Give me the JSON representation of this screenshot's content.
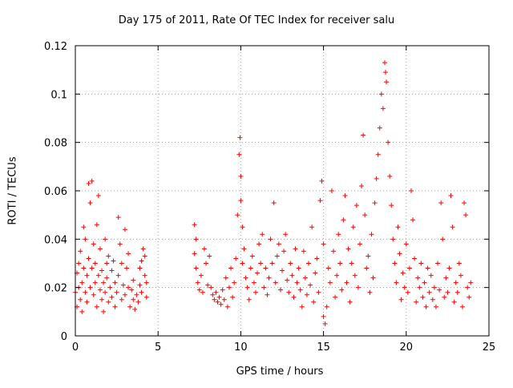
{
  "chart_data": {
    "type": "scatter",
    "title": "Day 175 of 2011, Rate Of TEC Index for receiver salu",
    "xlabel": "GPS time / hours",
    "ylabel": "ROTI / TECUs",
    "xlim": [
      0,
      25
    ],
    "ylim": [
      0,
      0.12
    ],
    "x_ticks": [
      "0",
      "5",
      "10",
      "15",
      "20",
      "25"
    ],
    "y_ticks": [
      "0",
      "0.02",
      "0.04",
      "0.06",
      "0.08",
      "0.1",
      "0.12"
    ],
    "grid": true,
    "marker": "+",
    "color": "#ff0000",
    "series": [
      {
        "points": [
          [
            0.0,
            0.018
          ],
          [
            0.1,
            0.026
          ],
          [
            0.1,
            0.012
          ],
          [
            0.2,
            0.03
          ],
          [
            0.2,
            0.02
          ],
          [
            0.3,
            0.015
          ],
          [
            0.3,
            0.035
          ],
          [
            0.4,
            0.022
          ],
          [
            0.4,
            0.01
          ],
          [
            0.5,
            0.045
          ],
          [
            0.5,
            0.028
          ],
          [
            0.6,
            0.018
          ],
          [
            0.6,
            0.04
          ],
          [
            0.7,
            0.025
          ],
          [
            0.7,
            0.014
          ],
          [
            0.8,
            0.063
          ],
          [
            0.8,
            0.032
          ],
          [
            0.9,
            0.02
          ],
          [
            0.9,
            0.055
          ],
          [
            1.0,
            0.064
          ],
          [
            1.0,
            0.028
          ],
          [
            1.1,
            0.017
          ],
          [
            1.1,
            0.038
          ],
          [
            1.2,
            0.022
          ],
          [
            1.2,
            0.03
          ],
          [
            1.3,
            0.046
          ],
          [
            1.3,
            0.012
          ],
          [
            1.4,
            0.025
          ],
          [
            1.4,
            0.058
          ],
          [
            1.5,
            0.019
          ],
          [
            1.5,
            0.036
          ],
          [
            1.6,
            0.015
          ],
          [
            1.6,
            0.027
          ],
          [
            1.7,
            0.022
          ],
          [
            1.7,
            0.01
          ],
          [
            1.8,
            0.04
          ],
          [
            1.8,
            0.018
          ],
          [
            1.9,
            0.03
          ],
          [
            1.9,
            0.024
          ],
          [
            2.0,
            0.014
          ],
          [
            2.0,
            0.033
          ],
          [
            2.1,
            0.02
          ],
          [
            2.2,
            0.027
          ],
          [
            2.2,
            0.016
          ],
          [
            2.3,
            0.031
          ],
          [
            2.4,
            0.012
          ],
          [
            2.4,
            0.022
          ],
          [
            2.5,
            0.018
          ],
          [
            2.6,
            0.049
          ],
          [
            2.6,
            0.025
          ],
          [
            2.7,
            0.038
          ],
          [
            2.8,
            0.015
          ],
          [
            2.8,
            0.03
          ],
          [
            2.9,
            0.021
          ],
          [
            3.0,
            0.044
          ],
          [
            3.0,
            0.017
          ],
          [
            3.1,
            0.028
          ],
          [
            3.2,
            0.02
          ],
          [
            3.2,
            0.034
          ],
          [
            3.3,
            0.012
          ],
          [
            3.4,
            0.019
          ],
          [
            3.5,
            0.023
          ],
          [
            3.5,
            0.015
          ],
          [
            3.6,
            0.011
          ],
          [
            3.7,
            0.017
          ],
          [
            3.8,
            0.014
          ],
          [
            3.9,
            0.028
          ],
          [
            3.9,
            0.021
          ],
          [
            4.0,
            0.031
          ],
          [
            4.0,
            0.018
          ],
          [
            4.1,
            0.036
          ],
          [
            4.2,
            0.025
          ],
          [
            4.2,
            0.033
          ],
          [
            4.3,
            0.022
          ],
          [
            4.3,
            0.016
          ],
          [
            7.2,
            0.046
          ],
          [
            7.2,
            0.034
          ],
          [
            7.3,
            0.028
          ],
          [
            7.3,
            0.04
          ],
          [
            7.4,
            0.022
          ],
          [
            7.5,
            0.019
          ],
          [
            7.6,
            0.025
          ],
          [
            7.7,
            0.018
          ],
          [
            7.8,
            0.036
          ],
          [
            7.9,
            0.03
          ],
          [
            8.0,
            0.021
          ],
          [
            8.1,
            0.033
          ],
          [
            8.2,
            0.02
          ],
          [
            8.3,
            0.017
          ],
          [
            8.4,
            0.015
          ],
          [
            8.5,
            0.018
          ],
          [
            8.6,
            0.014
          ],
          [
            8.7,
            0.016
          ],
          [
            8.8,
            0.013
          ],
          [
            8.9,
            0.019
          ],
          [
            9.0,
            0.015
          ],
          [
            9.1,
            0.024
          ],
          [
            9.2,
            0.012
          ],
          [
            9.3,
            0.02
          ],
          [
            9.4,
            0.028
          ],
          [
            9.5,
            0.016
          ],
          [
            9.6,
            0.022
          ],
          [
            9.7,
            0.032
          ],
          [
            9.8,
            0.05
          ],
          [
            9.9,
            0.075
          ],
          [
            9.95,
            0.082
          ],
          [
            10.0,
            0.066
          ],
          [
            10.0,
            0.056
          ],
          [
            10.1,
            0.045
          ],
          [
            10.1,
            0.03
          ],
          [
            10.2,
            0.036
          ],
          [
            10.3,
            0.024
          ],
          [
            10.4,
            0.02
          ],
          [
            10.5,
            0.015
          ],
          [
            10.6,
            0.028
          ],
          [
            10.7,
            0.033
          ],
          [
            10.8,
            0.022
          ],
          [
            10.9,
            0.018
          ],
          [
            11.0,
            0.026
          ],
          [
            11.1,
            0.038
          ],
          [
            11.2,
            0.03
          ],
          [
            11.3,
            0.042
          ],
          [
            11.4,
            0.02
          ],
          [
            11.5,
            0.028
          ],
          [
            11.6,
            0.017
          ],
          [
            11.7,
            0.024
          ],
          [
            11.8,
            0.04
          ],
          [
            11.9,
            0.03
          ],
          [
            12.0,
            0.055
          ],
          [
            12.1,
            0.022
          ],
          [
            12.2,
            0.033
          ],
          [
            12.3,
            0.038
          ],
          [
            12.4,
            0.019
          ],
          [
            12.5,
            0.027
          ],
          [
            12.6,
            0.035
          ],
          [
            12.7,
            0.042
          ],
          [
            12.8,
            0.023
          ],
          [
            12.9,
            0.018
          ],
          [
            13.0,
            0.03
          ],
          [
            13.1,
            0.025
          ],
          [
            13.2,
            0.016
          ],
          [
            13.3,
            0.036
          ],
          [
            13.4,
            0.022
          ],
          [
            13.5,
            0.028
          ],
          [
            13.6,
            0.019
          ],
          [
            13.7,
            0.012
          ],
          [
            13.8,
            0.035
          ],
          [
            13.9,
            0.024
          ],
          [
            14.0,
            0.017
          ],
          [
            14.1,
            0.03
          ],
          [
            14.2,
            0.021
          ],
          [
            14.3,
            0.045
          ],
          [
            14.4,
            0.014
          ],
          [
            14.5,
            0.026
          ],
          [
            14.6,
            0.032
          ],
          [
            14.7,
            0.018
          ],
          [
            14.8,
            0.056
          ],
          [
            14.9,
            0.064
          ],
          [
            15.0,
            0.038
          ],
          [
            15.0,
            0.008
          ],
          [
            15.1,
            0.005
          ],
          [
            15.2,
            0.012
          ],
          [
            15.3,
            0.028
          ],
          [
            15.4,
            0.022
          ],
          [
            15.5,
            0.06
          ],
          [
            15.6,
            0.035
          ],
          [
            15.7,
            0.016
          ],
          [
            15.8,
            0.025
          ],
          [
            15.9,
            0.042
          ],
          [
            16.0,
            0.03
          ],
          [
            16.1,
            0.019
          ],
          [
            16.2,
            0.048
          ],
          [
            16.3,
            0.058
          ],
          [
            16.4,
            0.022
          ],
          [
            16.5,
            0.036
          ],
          [
            16.6,
            0.014
          ],
          [
            16.7,
            0.03
          ],
          [
            16.8,
            0.045
          ],
          [
            16.9,
            0.025
          ],
          [
            17.0,
            0.054
          ],
          [
            17.1,
            0.02
          ],
          [
            17.2,
            0.038
          ],
          [
            17.3,
            0.062
          ],
          [
            17.4,
            0.083
          ],
          [
            17.5,
            0.05
          ],
          [
            17.6,
            0.028
          ],
          [
            17.7,
            0.033
          ],
          [
            17.8,
            0.018
          ],
          [
            17.9,
            0.042
          ],
          [
            18.0,
            0.024
          ],
          [
            18.1,
            0.055
          ],
          [
            18.2,
            0.065
          ],
          [
            18.3,
            0.075
          ],
          [
            18.4,
            0.086
          ],
          [
            18.5,
            0.1
          ],
          [
            18.6,
            0.094
          ],
          [
            18.7,
            0.113
          ],
          [
            18.75,
            0.109
          ],
          [
            18.8,
            0.105
          ],
          [
            18.9,
            0.08
          ],
          [
            19.0,
            0.066
          ],
          [
            19.1,
            0.054
          ],
          [
            19.2,
            0.04
          ],
          [
            19.3,
            0.03
          ],
          [
            19.4,
            0.022
          ],
          [
            19.5,
            0.045
          ],
          [
            19.6,
            0.034
          ],
          [
            19.7,
            0.015
          ],
          [
            19.8,
            0.026
          ],
          [
            19.9,
            0.02
          ],
          [
            20.0,
            0.038
          ],
          [
            20.1,
            0.018
          ],
          [
            20.2,
            0.028
          ],
          [
            20.3,
            0.06
          ],
          [
            20.4,
            0.048
          ],
          [
            20.5,
            0.032
          ],
          [
            20.6,
            0.014
          ],
          [
            20.7,
            0.024
          ],
          [
            20.8,
            0.02
          ],
          [
            20.9,
            0.03
          ],
          [
            21.0,
            0.016
          ],
          [
            21.1,
            0.022
          ],
          [
            21.2,
            0.012
          ],
          [
            21.3,
            0.028
          ],
          [
            21.4,
            0.018
          ],
          [
            21.5,
            0.025
          ],
          [
            21.6,
            0.015
          ],
          [
            21.7,
            0.02
          ],
          [
            21.8,
            0.012
          ],
          [
            21.9,
            0.03
          ],
          [
            22.0,
            0.019
          ],
          [
            22.1,
            0.055
          ],
          [
            22.2,
            0.04
          ],
          [
            22.3,
            0.016
          ],
          [
            22.4,
            0.024
          ],
          [
            22.5,
            0.018
          ],
          [
            22.6,
            0.028
          ],
          [
            22.7,
            0.058
          ],
          [
            22.8,
            0.045
          ],
          [
            22.9,
            0.014
          ],
          [
            23.0,
            0.022
          ],
          [
            23.1,
            0.018
          ],
          [
            23.2,
            0.03
          ],
          [
            23.3,
            0.025
          ],
          [
            23.4,
            0.012
          ],
          [
            23.5,
            0.055
          ],
          [
            23.6,
            0.05
          ],
          [
            23.7,
            0.02
          ],
          [
            23.8,
            0.016
          ],
          [
            23.9,
            0.022
          ]
        ]
      }
    ]
  }
}
